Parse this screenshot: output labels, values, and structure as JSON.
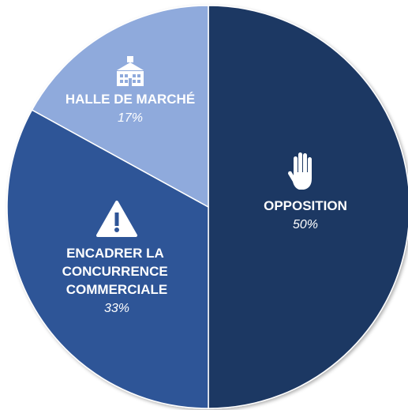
{
  "chart_data": {
    "type": "pie",
    "categories": [
      "OPPOSITION",
      "ENCADRER LA CONCURRENCE COMMERCIALE",
      "HALLE DE MARCHÉ"
    ],
    "values": [
      50,
      33,
      17
    ],
    "value_labels": [
      "50%",
      "33%",
      "17%"
    ],
    "colors": [
      "#1f3864",
      "#2f5597",
      "#8faadc"
    ]
  }
}
